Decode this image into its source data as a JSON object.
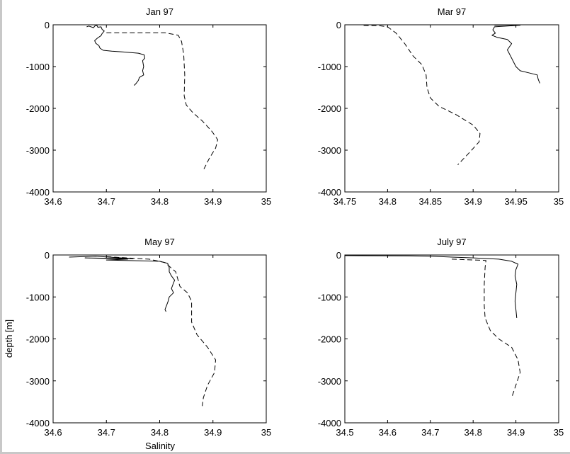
{
  "figure": {
    "ylabel": "depth [m]",
    "xlabel": "Salinity"
  },
  "chart_data": [
    {
      "type": "line",
      "title": "Jan 97",
      "xlim": [
        34.6,
        35
      ],
      "ylim": [
        -4000,
        0
      ],
      "xticks": [
        "34.6",
        "34.7",
        "34.8",
        "34.9",
        "35"
      ],
      "yticks": [
        "-4000",
        "-3000",
        "-2000",
        "-1000",
        "0"
      ],
      "grid": false,
      "series": [
        {
          "style": "solid",
          "points": [
            [
              34.663,
              -50
            ],
            [
              34.667,
              -30
            ],
            [
              34.676,
              -70
            ],
            [
              34.678,
              -30
            ],
            [
              34.682,
              -10
            ],
            [
              34.684,
              -60
            ],
            [
              34.69,
              -50
            ],
            [
              34.692,
              -110
            ],
            [
              34.696,
              -150
            ],
            [
              34.692,
              -210
            ],
            [
              34.69,
              -260
            ],
            [
              34.683,
              -320
            ],
            [
              34.678,
              -380
            ],
            [
              34.68,
              -440
            ],
            [
              34.686,
              -500
            ],
            [
              34.688,
              -560
            ],
            [
              34.694,
              -610
            ],
            [
              34.71,
              -630
            ],
            [
              34.73,
              -650
            ],
            [
              34.76,
              -680
            ],
            [
              34.771,
              -720
            ],
            [
              34.772,
              -800
            ],
            [
              34.768,
              -860
            ],
            [
              34.77,
              -1000
            ],
            [
              34.768,
              -1100
            ],
            [
              34.77,
              -1200
            ],
            [
              34.762,
              -1260
            ],
            [
              34.76,
              -1330
            ],
            [
              34.756,
              -1400
            ],
            [
              34.752,
              -1450
            ]
          ]
        },
        {
          "style": "dashed",
          "points": [
            [
              34.7,
              -190
            ],
            [
              34.81,
              -190
            ],
            [
              34.835,
              -250
            ],
            [
              34.841,
              -400
            ],
            [
              34.845,
              -700
            ],
            [
              34.847,
              -1200
            ],
            [
              34.846,
              -1700
            ],
            [
              34.85,
              -1920
            ],
            [
              34.862,
              -2100
            ],
            [
              34.88,
              -2300
            ],
            [
              34.898,
              -2550
            ],
            [
              34.909,
              -2750
            ],
            [
              34.905,
              -2950
            ],
            [
              34.893,
              -3200
            ],
            [
              34.883,
              -3450
            ]
          ]
        }
      ]
    },
    {
      "type": "line",
      "title": "Mar 97",
      "xlim": [
        34.75,
        35
      ],
      "ylim": [
        -4000,
        0
      ],
      "xticks": [
        "34.75",
        "34.8",
        "34.85",
        "34.9",
        "34.95",
        "35"
      ],
      "yticks": [
        "-4000",
        "-3000",
        "-2000",
        "-1000",
        "0"
      ],
      "grid": false,
      "series": [
        {
          "style": "solid",
          "points": [
            [
              34.925,
              -10
            ],
            [
              34.93,
              -10
            ],
            [
              34.94,
              -5
            ],
            [
              34.955,
              -10
            ],
            [
              34.925,
              -50
            ],
            [
              34.923,
              -120
            ],
            [
              34.926,
              -200
            ],
            [
              34.922,
              -250
            ],
            [
              34.928,
              -300
            ],
            [
              34.94,
              -350
            ],
            [
              34.945,
              -450
            ],
            [
              34.94,
              -600
            ],
            [
              34.945,
              -800
            ],
            [
              34.95,
              -1000
            ],
            [
              34.955,
              -1100
            ],
            [
              34.965,
              -1150
            ],
            [
              34.975,
              -1200
            ],
            [
              34.976,
              -1300
            ],
            [
              34.978,
              -1400
            ]
          ]
        },
        {
          "style": "dashed",
          "points": [
            [
              34.772,
              -15
            ],
            [
              34.79,
              -20
            ],
            [
              34.8,
              -50
            ],
            [
              34.81,
              -200
            ],
            [
              34.82,
              -450
            ],
            [
              34.83,
              -750
            ],
            [
              34.84,
              -950
            ],
            [
              34.845,
              -1200
            ],
            [
              34.846,
              -1500
            ],
            [
              34.85,
              -1750
            ],
            [
              34.86,
              -1950
            ],
            [
              34.88,
              -2150
            ],
            [
              34.9,
              -2400
            ],
            [
              34.908,
              -2600
            ],
            [
              34.907,
              -2800
            ],
            [
              34.896,
              -3050
            ],
            [
              34.882,
              -3350
            ]
          ]
        }
      ]
    },
    {
      "type": "line",
      "title": "May 97",
      "xlim": [
        34.6,
        35
      ],
      "ylim": [
        -4000,
        0
      ],
      "xticks": [
        "34.6",
        "34.7",
        "34.8",
        "34.9",
        "35"
      ],
      "yticks": [
        "-4000",
        "-3000",
        "-2000",
        "-1000",
        "0"
      ],
      "grid": false,
      "series": [
        {
          "style": "solid",
          "points": [
            [
              34.63,
              -50
            ],
            [
              34.68,
              -30
            ],
            [
              34.75,
              -90
            ],
            [
              34.66,
              -70
            ],
            [
              34.74,
              -100
            ],
            [
              34.7,
              -120
            ],
            [
              34.8,
              -150
            ],
            [
              34.815,
              -200
            ],
            [
              34.818,
              -300
            ],
            [
              34.818,
              -400
            ],
            [
              34.822,
              -500
            ],
            [
              34.828,
              -600
            ],
            [
              34.825,
              -700
            ],
            [
              34.822,
              -800
            ],
            [
              34.826,
              -900
            ],
            [
              34.818,
              -1000
            ],
            [
              34.816,
              -1100
            ],
            [
              34.813,
              -1200
            ],
            [
              34.81,
              -1300
            ],
            [
              34.812,
              -1350
            ]
          ]
        },
        {
          "style": "dashed",
          "points": [
            [
              34.7,
              -40
            ],
            [
              34.78,
              -100
            ],
            [
              34.81,
              -180
            ],
            [
              34.83,
              -400
            ],
            [
              34.838,
              -750
            ],
            [
              34.852,
              -900
            ],
            [
              34.86,
              -1100
            ],
            [
              34.86,
              -1600
            ],
            [
              34.87,
              -1900
            ],
            [
              34.89,
              -2200
            ],
            [
              34.905,
              -2500
            ],
            [
              34.903,
              -2800
            ],
            [
              34.89,
              -3100
            ],
            [
              34.882,
              -3400
            ],
            [
              34.88,
              -3600
            ]
          ]
        }
      ]
    },
    {
      "type": "line",
      "title": "July 97",
      "xlim": [
        34.5,
        35
      ],
      "ylim": [
        -4000,
        0
      ],
      "xticks": [
        "34.5",
        "34.6",
        "34.7",
        "34.8",
        "34.9",
        "35"
      ],
      "yticks": [
        "-4000",
        "-3000",
        "-2000",
        "-1000",
        "0"
      ],
      "grid": false,
      "series": [
        {
          "style": "solid",
          "points": [
            [
              34.5,
              -15
            ],
            [
              34.65,
              -20
            ],
            [
              34.7,
              -30
            ],
            [
              34.8,
              -70
            ],
            [
              34.86,
              -100
            ],
            [
              34.89,
              -150
            ],
            [
              34.905,
              -220
            ],
            [
              34.9,
              -350
            ],
            [
              34.898,
              -500
            ],
            [
              34.902,
              -700
            ],
            [
              34.9,
              -900
            ],
            [
              34.898,
              -1100
            ],
            [
              34.9,
              -1300
            ],
            [
              34.902,
              -1500
            ]
          ]
        },
        {
          "style": "dashed",
          "points": [
            [
              34.75,
              -100
            ],
            [
              34.83,
              -130
            ],
            [
              34.828,
              -300
            ],
            [
              34.826,
              -700
            ],
            [
              34.826,
              -1200
            ],
            [
              34.828,
              -1500
            ],
            [
              34.84,
              -1800
            ],
            [
              34.86,
              -2000
            ],
            [
              34.89,
              -2200
            ],
            [
              34.905,
              -2500
            ],
            [
              34.91,
              -2800
            ],
            [
              34.9,
              -3100
            ],
            [
              34.89,
              -3400
            ]
          ]
        }
      ]
    }
  ]
}
